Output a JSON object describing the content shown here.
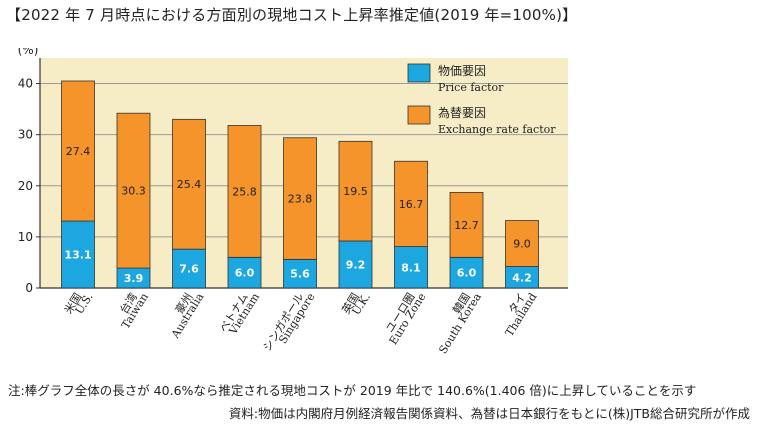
{
  "title": "【2022 年 7 月時点における方面別の現地コスト上昇率推定値(2019 年=100%)】",
  "note": "注:棒グラフ全体の長さが 40.6%なら推定される現地コストが 2019 年比で 140.6%(1.406 倍)に上昇していることを示す",
  "source": "資料:物価は内閣府月例経済報告関係資料、為替は日本銀行をもとに(株)JTB総合研究所が作成",
  "colors": {
    "price": "#1ca7e0",
    "exchange": "#f5942a",
    "plot_bg": "#f6ecc6",
    "axis": "#333333"
  },
  "chart_data": {
    "type": "bar",
    "stacked": true,
    "ylabel": "(%)",
    "ylim": [
      0,
      45
    ],
    "yticks": [
      0,
      10,
      20,
      30,
      40
    ],
    "grid": true,
    "legend_position": "top-right",
    "categories": [
      {
        "ja": "米国",
        "en": "U.S."
      },
      {
        "ja": "台湾",
        "en": "Taiwan"
      },
      {
        "ja": "豪州",
        "en": "Australia"
      },
      {
        "ja": "ベトナム",
        "en": "Vietnam"
      },
      {
        "ja": "シンガポール",
        "en": "Singapore"
      },
      {
        "ja": "英国",
        "en": "U.K."
      },
      {
        "ja": "ユーロ圏",
        "en": "Euro Zone"
      },
      {
        "ja": "韓国",
        "en": "South Korea"
      },
      {
        "ja": "タイ",
        "en": "Thailand"
      }
    ],
    "series": [
      {
        "name_ja": "物価要因",
        "name_en": "Price factor",
        "color": "#1ca7e0",
        "values": [
          13.1,
          3.9,
          7.6,
          6.0,
          5.6,
          9.2,
          8.1,
          6.0,
          4.2
        ]
      },
      {
        "name_ja": "為替要因",
        "name_en": "Exchange rate factor",
        "color": "#f5942a",
        "values": [
          27.4,
          30.3,
          25.4,
          25.8,
          23.8,
          19.5,
          16.7,
          12.7,
          9.0
        ]
      }
    ]
  }
}
